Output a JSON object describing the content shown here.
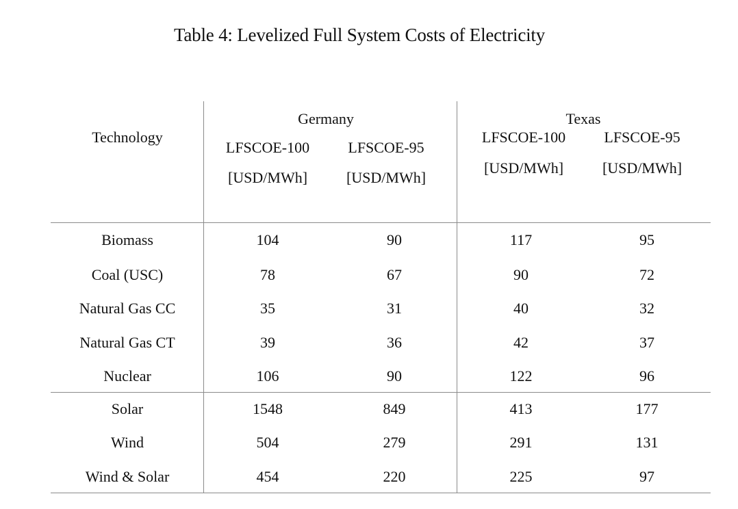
{
  "caption": "Table 4: Levelized Full System Costs of Electricity",
  "header": {
    "technology": "Technology",
    "germany": "Germany",
    "texas": "Texas",
    "columns": [
      {
        "metric": "LFSCOE-100",
        "unit": "[USD/MWh]"
      },
      {
        "metric": "LFSCOE-95",
        "unit": "[USD/MWh]"
      },
      {
        "metric": "LFSCOE-100",
        "unit": "[USD/MWh]"
      },
      {
        "metric": "LFSCOE-95",
        "unit": "[USD/MWh]"
      }
    ]
  },
  "rows": [
    {
      "technology": "Biomass",
      "values": [
        "104",
        "90",
        "117",
        "95"
      ]
    },
    {
      "technology": "Coal (USC)",
      "values": [
        "78",
        "67",
        "90",
        "72"
      ]
    },
    {
      "technology": "Natural Gas CC",
      "values": [
        "35",
        "31",
        "40",
        "32"
      ]
    },
    {
      "technology": "Natural Gas CT",
      "values": [
        "39",
        "36",
        "42",
        "37"
      ]
    },
    {
      "technology": "Nuclear",
      "values": [
        "106",
        "90",
        "122",
        "96"
      ]
    },
    {
      "technology": "Solar",
      "values": [
        "1548",
        "849",
        "413",
        "177"
      ]
    },
    {
      "technology": "Wind",
      "values": [
        "504",
        "279",
        "291",
        "131"
      ]
    },
    {
      "technology": "Wind & Solar",
      "values": [
        "454",
        "220",
        "225",
        "97"
      ]
    }
  ]
}
